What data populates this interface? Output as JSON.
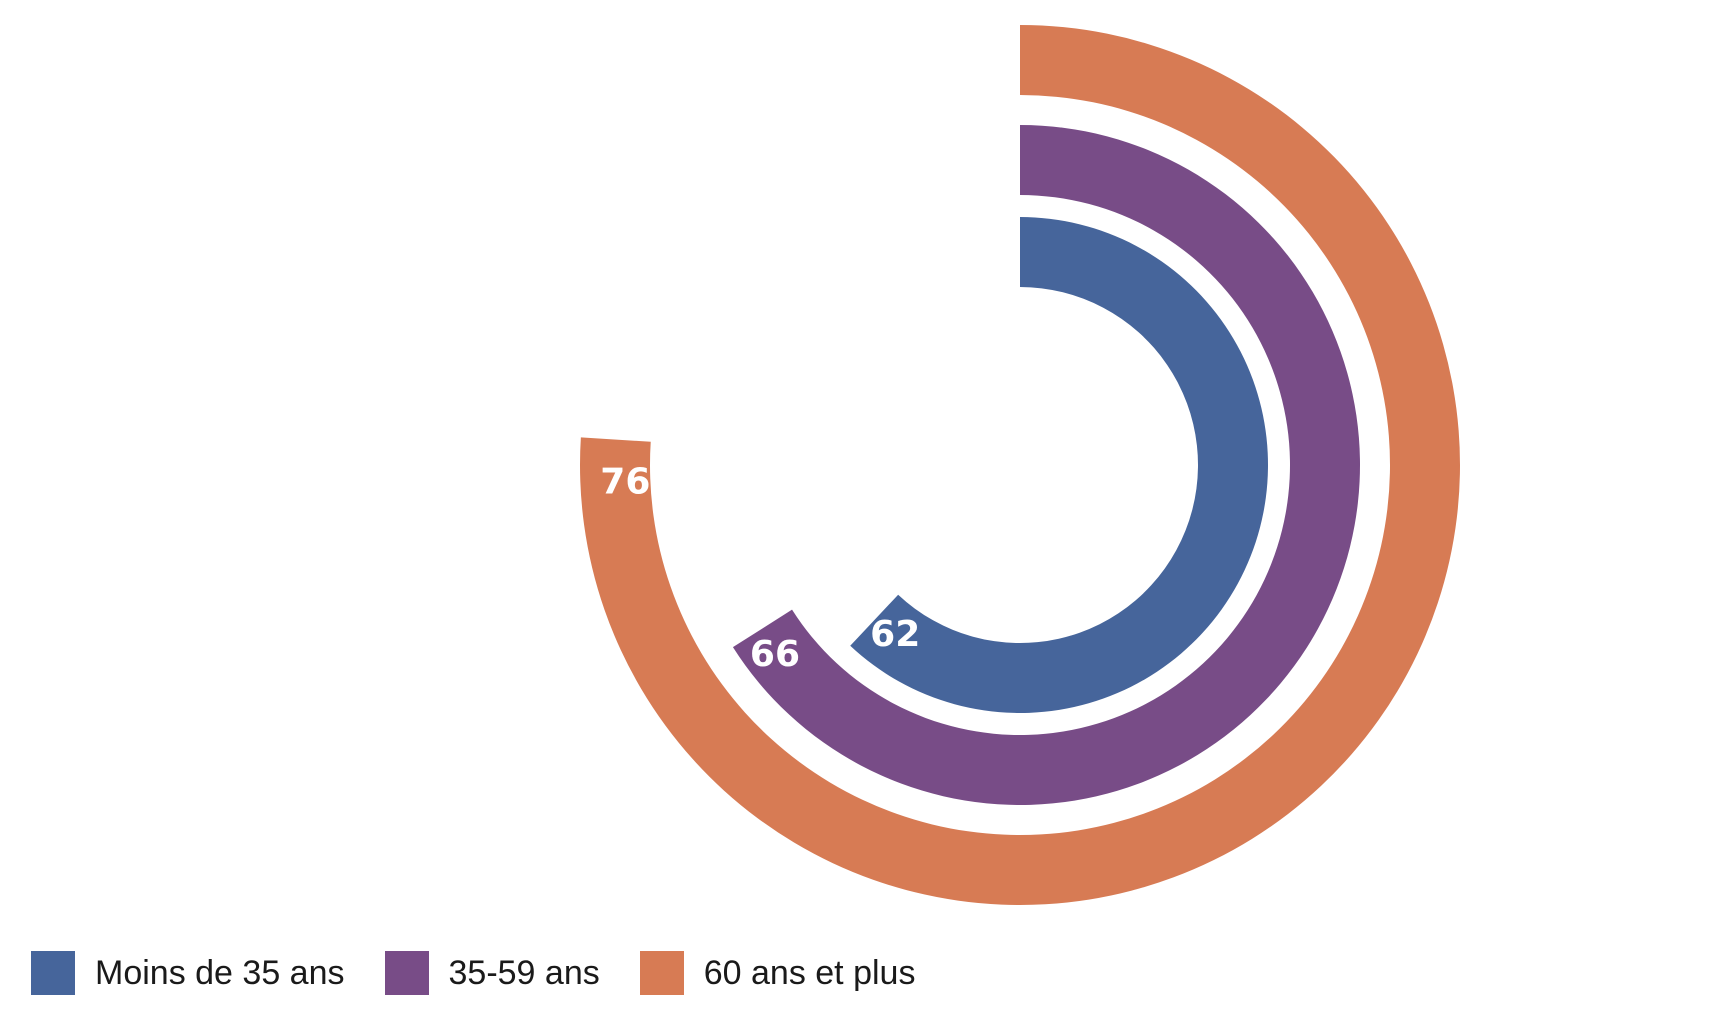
{
  "chart_data": {
    "type": "radial-bar",
    "title": "",
    "categories": [
      "Moins de 35 ans",
      "35-59 ans",
      "60 ans et plus"
    ],
    "values": [
      62,
      66,
      76
    ],
    "max": 100,
    "unit": "",
    "series": [
      {
        "name": "Moins de 35 ans",
        "value": 62,
        "label": "62",
        "color": "#46659b"
      },
      {
        "name": "35-59 ans",
        "value": 66,
        "label": "66",
        "color": "#784c87"
      },
      {
        "name": "60 ans et plus",
        "value": 76,
        "label": "76",
        "color": "#d77b54"
      }
    ],
    "legend_position": "bottom-left",
    "background": "#ffffff"
  }
}
